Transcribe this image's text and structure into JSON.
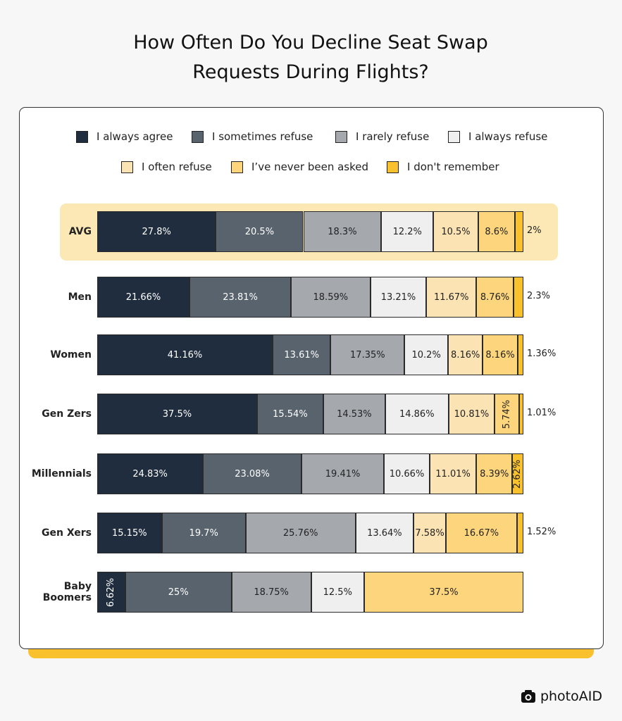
{
  "chart_data": {
    "type": "stacked-bar",
    "title": "How Often Do You Decline Seat Swap Requests During Flights?",
    "categories": [
      "AVG",
      "Men",
      "Women",
      "Gen Zers",
      "Millennials",
      "Gen Xers",
      "Baby Boomers"
    ],
    "series": [
      {
        "name": "I always agree",
        "color": "#1f2d3f",
        "values": [
          27.8,
          21.66,
          41.16,
          37.5,
          24.83,
          15.15,
          6.62
        ],
        "value_labels": [
          "27.8%",
          "21.66%",
          "41.16%",
          "37.5%",
          "24.83%",
          "15.15%",
          "6.62%"
        ]
      },
      {
        "name": "I sometimes refuse",
        "color": "#59636e",
        "values": [
          20.5,
          23.81,
          13.61,
          15.54,
          23.08,
          19.7,
          25
        ],
        "value_labels": [
          "20.5%",
          "23.81%",
          "13.61%",
          "15.54%",
          "23.08%",
          "19.7%",
          "25%"
        ]
      },
      {
        "name": "I rarely refuse",
        "color": "#a5a9ae",
        "values": [
          18.3,
          18.59,
          17.35,
          14.53,
          19.41,
          25.76,
          18.75
        ],
        "value_labels": [
          "18.3%",
          "18.59%",
          "17.35%",
          "14.53%",
          "19.41%",
          "25.76%",
          "18.75%"
        ]
      },
      {
        "name": "I always refuse",
        "color": "#efeff0",
        "values": [
          12.2,
          13.21,
          10.2,
          14.86,
          10.66,
          13.64,
          12.5
        ],
        "value_labels": [
          "12.2%",
          "13.21%",
          "10.2%",
          "14.86%",
          "10.66%",
          "13.64%",
          "12.5%"
        ]
      },
      {
        "name": "I often refuse",
        "color": "#fbe3b4",
        "values": [
          10.5,
          11.67,
          8.16,
          10.81,
          11.01,
          7.58,
          null
        ],
        "value_labels": [
          "10.5%",
          "11.67%",
          "8.16%",
          "10.81%",
          "11.01%",
          "7.58%",
          null
        ]
      },
      {
        "name": "I’ve never been asked",
        "color": "#fdd57c",
        "values": [
          8.6,
          8.76,
          8.16,
          5.74,
          8.39,
          16.67,
          37.5
        ],
        "value_labels": [
          "8.6%",
          "8.76%",
          "8.16%",
          "5.74%",
          "8.39%",
          "16.67%",
          "37.5%"
        ]
      },
      {
        "name": "I don't remember",
        "color": "#f9c12e",
        "values": [
          2,
          2.3,
          1.36,
          1.01,
          2.62,
          1.52,
          null
        ],
        "value_labels": [
          "2%",
          "2.3%",
          "1.36%",
          "1.01%",
          "2.62%",
          "1.52%",
          null
        ]
      }
    ]
  },
  "brand": "photoAID"
}
